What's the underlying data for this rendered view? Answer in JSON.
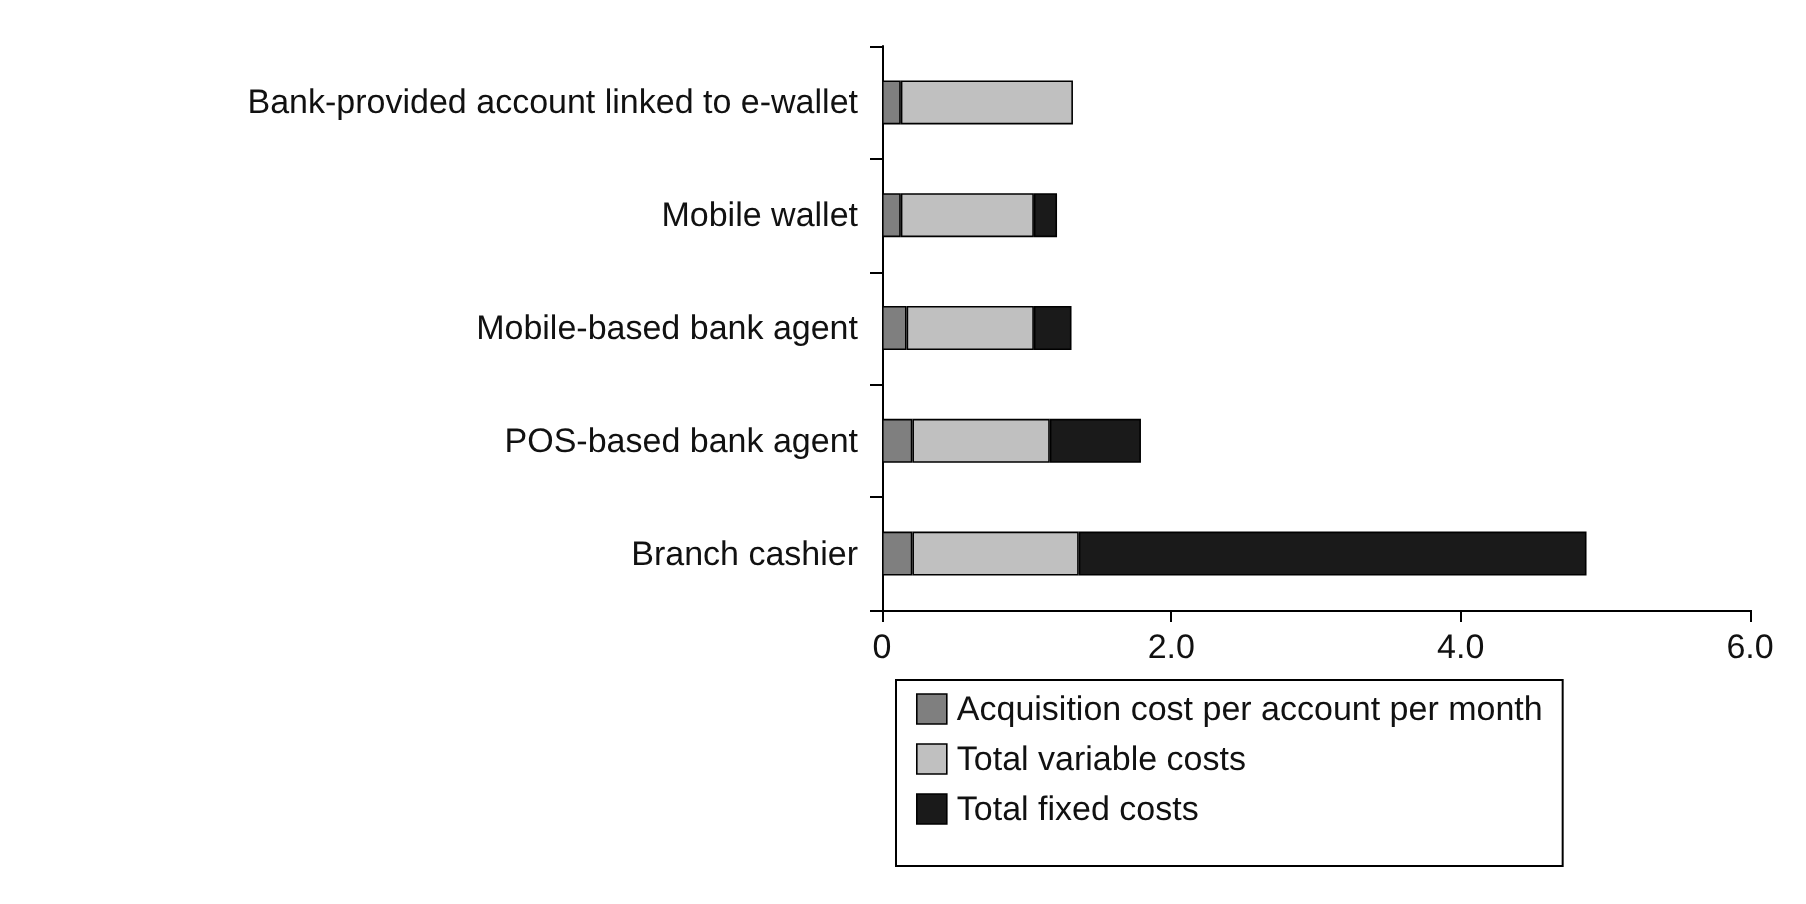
{
  "chart_data": {
    "type": "bar",
    "orientation": "horizontal",
    "stacked": true,
    "categories": [
      "Bank-provided account linked to e-wallet",
      "Mobile wallet",
      "Mobile-based bank agent",
      "POS-based bank agent",
      "Branch cashier"
    ],
    "series": [
      {
        "name": "Acquisition cost per account per month",
        "color": "#7f7f7f",
        "values": [
          0.13,
          0.13,
          0.17,
          0.21,
          0.21
        ]
      },
      {
        "name": "Total variable costs",
        "color": "#c0c0c0",
        "values": [
          1.19,
          0.92,
          0.88,
          0.95,
          1.15
        ]
      },
      {
        "name": "Total fixed costs",
        "color": "#1a1a1a",
        "values": [
          null,
          0.16,
          0.26,
          0.63,
          3.51
        ]
      }
    ],
    "xlim": [
      0,
      6
    ],
    "xticks": [
      0,
      {
        "value": 2,
        "label": "2.0"
      },
      {
        "value": 4,
        "label": "4.0"
      },
      {
        "value": 6,
        "label": "6.0"
      }
    ],
    "grid": false,
    "legend": "bottom"
  }
}
